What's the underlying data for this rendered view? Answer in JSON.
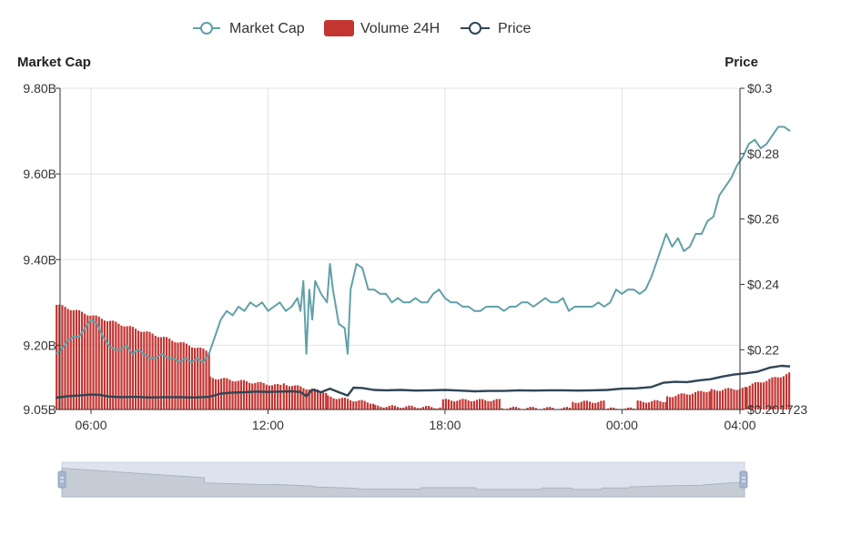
{
  "chart_data": {
    "type": "line",
    "legend": {
      "placement": "top-center",
      "items": [
        {
          "name": "Market Cap",
          "color": "#61a0a8",
          "symbol": "line-circle"
        },
        {
          "name": "Volume 24H",
          "color": "#c23531",
          "symbol": "rect"
        },
        {
          "name": "Price",
          "color": "#2f4554",
          "symbol": "line-circle"
        }
      ]
    },
    "y_left": {
      "title": "Market Cap",
      "min": 9.05,
      "max": 9.8,
      "ticks": [
        {
          "value": 9.05,
          "label": "9.05B"
        },
        {
          "value": 9.2,
          "label": "9.20B"
        },
        {
          "value": 9.4,
          "label": "9.40B"
        },
        {
          "value": 9.6,
          "label": "9.60B"
        },
        {
          "value": 9.8,
          "label": "9.80B"
        }
      ]
    },
    "y_right": {
      "title": "Price",
      "min": 0.201723,
      "max": 0.3,
      "ticks": [
        {
          "value": 0.201723,
          "label": "$0.201723"
        },
        {
          "value": 0.22,
          "label": "$0.22"
        },
        {
          "value": 0.24,
          "label": "$0.24"
        },
        {
          "value": 0.26,
          "label": "$0.26"
        },
        {
          "value": 0.28,
          "label": "$0.28"
        },
        {
          "value": 0.3,
          "label": "$0.3"
        }
      ]
    },
    "x_axis": {
      "min": 4.8,
      "max": 28.0,
      "ticks": [
        {
          "value": 6,
          "label": "06:00"
        },
        {
          "value": 12,
          "label": "12:00"
        },
        {
          "value": 18,
          "label": "18:00"
        },
        {
          "value": 24,
          "label": "00:00"
        },
        {
          "value": 28,
          "label": "04:00"
        }
      ]
    },
    "grid": true,
    "series": [
      {
        "name": "Market Cap",
        "axis": "left",
        "color": "#61a0a8",
        "points": [
          [
            4.8,
            9.18
          ],
          [
            5.0,
            9.19
          ],
          [
            5.2,
            9.21
          ],
          [
            5.4,
            9.22
          ],
          [
            5.6,
            9.22
          ],
          [
            5.8,
            9.24
          ],
          [
            6.0,
            9.26
          ],
          [
            6.2,
            9.25
          ],
          [
            6.4,
            9.22
          ],
          [
            6.6,
            9.2
          ],
          [
            6.8,
            9.19
          ],
          [
            7.0,
            9.19
          ],
          [
            7.2,
            9.2
          ],
          [
            7.4,
            9.18
          ],
          [
            7.6,
            9.19
          ],
          [
            7.8,
            9.18
          ],
          [
            8.0,
            9.17
          ],
          [
            8.2,
            9.17
          ],
          [
            8.4,
            9.18
          ],
          [
            8.6,
            9.17
          ],
          [
            8.8,
            9.17
          ],
          [
            9.0,
            9.16
          ],
          [
            9.2,
            9.17
          ],
          [
            9.4,
            9.16
          ],
          [
            9.6,
            9.17
          ],
          [
            9.8,
            9.16
          ],
          [
            10.0,
            9.18
          ],
          [
            10.2,
            9.22
          ],
          [
            10.4,
            9.26
          ],
          [
            10.6,
            9.28
          ],
          [
            10.8,
            9.27
          ],
          [
            11.0,
            9.29
          ],
          [
            11.2,
            9.28
          ],
          [
            11.4,
            9.3
          ],
          [
            11.6,
            9.29
          ],
          [
            11.8,
            9.3
          ],
          [
            12.0,
            9.28
          ],
          [
            12.2,
            9.29
          ],
          [
            12.4,
            9.3
          ],
          [
            12.6,
            9.28
          ],
          [
            12.8,
            9.29
          ],
          [
            13.0,
            9.31
          ],
          [
            13.1,
            9.28
          ],
          [
            13.2,
            9.35
          ],
          [
            13.3,
            9.18
          ],
          [
            13.4,
            9.33
          ],
          [
            13.5,
            9.26
          ],
          [
            13.6,
            9.35
          ],
          [
            13.8,
            9.32
          ],
          [
            14.0,
            9.3
          ],
          [
            14.1,
            9.39
          ],
          [
            14.2,
            9.33
          ],
          [
            14.4,
            9.25
          ],
          [
            14.6,
            9.24
          ],
          [
            14.7,
            9.18
          ],
          [
            14.8,
            9.33
          ],
          [
            15.0,
            9.39
          ],
          [
            15.2,
            9.38
          ],
          [
            15.4,
            9.33
          ],
          [
            15.6,
            9.33
          ],
          [
            15.8,
            9.32
          ],
          [
            16.0,
            9.32
          ],
          [
            16.2,
            9.3
          ],
          [
            16.4,
            9.31
          ],
          [
            16.6,
            9.3
          ],
          [
            16.8,
            9.3
          ],
          [
            17.0,
            9.31
          ],
          [
            17.2,
            9.3
          ],
          [
            17.4,
            9.3
          ],
          [
            17.6,
            9.32
          ],
          [
            17.8,
            9.33
          ],
          [
            18.0,
            9.31
          ],
          [
            18.2,
            9.3
          ],
          [
            18.4,
            9.3
          ],
          [
            18.6,
            9.29
          ],
          [
            18.8,
            9.29
          ],
          [
            19.0,
            9.28
          ],
          [
            19.2,
            9.28
          ],
          [
            19.4,
            9.29
          ],
          [
            19.6,
            9.29
          ],
          [
            19.8,
            9.29
          ],
          [
            20.0,
            9.28
          ],
          [
            20.2,
            9.29
          ],
          [
            20.4,
            9.29
          ],
          [
            20.6,
            9.3
          ],
          [
            20.8,
            9.3
          ],
          [
            21.0,
            9.29
          ],
          [
            21.2,
            9.3
          ],
          [
            21.4,
            9.31
          ],
          [
            21.6,
            9.3
          ],
          [
            21.8,
            9.3
          ],
          [
            22.0,
            9.31
          ],
          [
            22.2,
            9.28
          ],
          [
            22.4,
            9.29
          ],
          [
            22.6,
            9.29
          ],
          [
            22.8,
            9.29
          ],
          [
            23.0,
            9.29
          ],
          [
            23.2,
            9.3
          ],
          [
            23.4,
            9.29
          ],
          [
            23.6,
            9.3
          ],
          [
            23.8,
            9.33
          ],
          [
            24.0,
            9.32
          ],
          [
            24.2,
            9.33
          ],
          [
            24.4,
            9.33
          ],
          [
            24.6,
            9.32
          ],
          [
            24.8,
            9.33
          ],
          [
            25.0,
            9.36
          ],
          [
            25.2,
            9.4
          ],
          [
            25.4,
            9.44
          ],
          [
            25.5,
            9.46
          ],
          [
            25.7,
            9.43
          ],
          [
            25.9,
            9.45
          ],
          [
            26.1,
            9.42
          ],
          [
            26.3,
            9.43
          ],
          [
            26.5,
            9.46
          ],
          [
            26.7,
            9.46
          ],
          [
            26.9,
            9.49
          ],
          [
            27.1,
            9.5
          ],
          [
            27.3,
            9.55
          ],
          [
            27.5,
            9.57
          ],
          [
            27.7,
            9.59
          ],
          [
            27.9,
            9.62
          ],
          [
            28.1,
            9.64
          ],
          [
            28.3,
            9.67
          ],
          [
            28.5,
            9.68
          ],
          [
            28.7,
            9.66
          ],
          [
            28.9,
            9.67
          ],
          [
            29.1,
            9.69
          ],
          [
            29.3,
            9.71
          ],
          [
            29.5,
            9.71
          ],
          [
            29.7,
            9.7
          ]
        ]
      },
      {
        "name": "Price",
        "axis": "right",
        "color": "#2f4554",
        "points": [
          [
            4.8,
            0.2053
          ],
          [
            5.2,
            0.2058
          ],
          [
            5.6,
            0.206
          ],
          [
            6.0,
            0.2063
          ],
          [
            6.3,
            0.2062
          ],
          [
            6.6,
            0.2057
          ],
          [
            7.0,
            0.2055
          ],
          [
            7.5,
            0.2056
          ],
          [
            8.0,
            0.2054
          ],
          [
            8.5,
            0.2055
          ],
          [
            9.0,
            0.2055
          ],
          [
            9.5,
            0.2054
          ],
          [
            10.0,
            0.2056
          ],
          [
            10.4,
            0.2066
          ],
          [
            10.8,
            0.2069
          ],
          [
            11.2,
            0.207
          ],
          [
            11.6,
            0.2072
          ],
          [
            12.0,
            0.2071
          ],
          [
            12.4,
            0.2072
          ],
          [
            12.8,
            0.2073
          ],
          [
            13.1,
            0.2071
          ],
          [
            13.3,
            0.2058
          ],
          [
            13.5,
            0.2078
          ],
          [
            13.8,
            0.207
          ],
          [
            14.1,
            0.2081
          ],
          [
            14.4,
            0.207
          ],
          [
            14.7,
            0.206
          ],
          [
            14.9,
            0.2084
          ],
          [
            15.2,
            0.2083
          ],
          [
            15.6,
            0.2077
          ],
          [
            16.0,
            0.2076
          ],
          [
            16.5,
            0.2077
          ],
          [
            17.0,
            0.2075
          ],
          [
            17.5,
            0.2076
          ],
          [
            18.0,
            0.2077
          ],
          [
            18.5,
            0.2075
          ],
          [
            19.0,
            0.2073
          ],
          [
            19.5,
            0.2074
          ],
          [
            20.0,
            0.2074
          ],
          [
            20.5,
            0.2076
          ],
          [
            21.0,
            0.2075
          ],
          [
            21.5,
            0.2076
          ],
          [
            22.0,
            0.2076
          ],
          [
            22.5,
            0.2075
          ],
          [
            23.0,
            0.2076
          ],
          [
            23.5,
            0.2077
          ],
          [
            24.0,
            0.2081
          ],
          [
            24.5,
            0.2082
          ],
          [
            25.0,
            0.2086
          ],
          [
            25.4,
            0.2099
          ],
          [
            25.8,
            0.2102
          ],
          [
            26.2,
            0.2101
          ],
          [
            26.6,
            0.2106
          ],
          [
            27.0,
            0.211
          ],
          [
            27.4,
            0.2118
          ],
          [
            27.8,
            0.2124
          ],
          [
            28.2,
            0.2128
          ],
          [
            28.6,
            0.2133
          ],
          [
            29.0,
            0.2145
          ],
          [
            29.4,
            0.2151
          ],
          [
            29.7,
            0.2149
          ]
        ]
      },
      {
        "name": "Volume 24H",
        "axis": "left",
        "color": "#c23531",
        "segments": [
          {
            "x_start": 4.8,
            "x_end": 10.0,
            "v_start": 9.295,
            "v_end": 9.185
          },
          {
            "x_start": 10.0,
            "x_end": 12.5,
            "v_start": 9.125,
            "v_end": 9.105
          },
          {
            "x_start": 12.5,
            "x_end": 14.0,
            "v_start": 9.11,
            "v_end": 9.09
          },
          {
            "x_start": 14.0,
            "x_end": 15.6,
            "v_start": 9.08,
            "v_end": 9.065
          },
          {
            "x_start": 15.6,
            "x_end": 17.9,
            "v_start": 9.058,
            "v_end": 9.055
          },
          {
            "x_start": 17.9,
            "x_end": 19.9,
            "v_start": 9.072,
            "v_end": 9.072
          },
          {
            "x_start": 19.9,
            "x_end": 22.3,
            "v_start": 9.054,
            "v_end": 9.053
          },
          {
            "x_start": 22.3,
            "x_end": 23.4,
            "v_start": 9.068,
            "v_end": 9.068
          },
          {
            "x_start": 23.4,
            "x_end": 24.5,
            "v_start": 9.052,
            "v_end": 9.052
          },
          {
            "x_start": 24.5,
            "x_end": 25.5,
            "v_start": 9.068,
            "v_end": 9.07
          },
          {
            "x_start": 25.5,
            "x_end": 27.0,
            "v_start": 9.08,
            "v_end": 9.095
          },
          {
            "x_start": 27.0,
            "x_end": 28.2,
            "v_start": 9.095,
            "v_end": 9.1
          },
          {
            "x_start": 28.2,
            "x_end": 29.7,
            "v_start": 9.105,
            "v_end": 9.135
          }
        ]
      }
    ],
    "datazoom": {
      "start_percent": 0,
      "end_percent": 100
    }
  }
}
